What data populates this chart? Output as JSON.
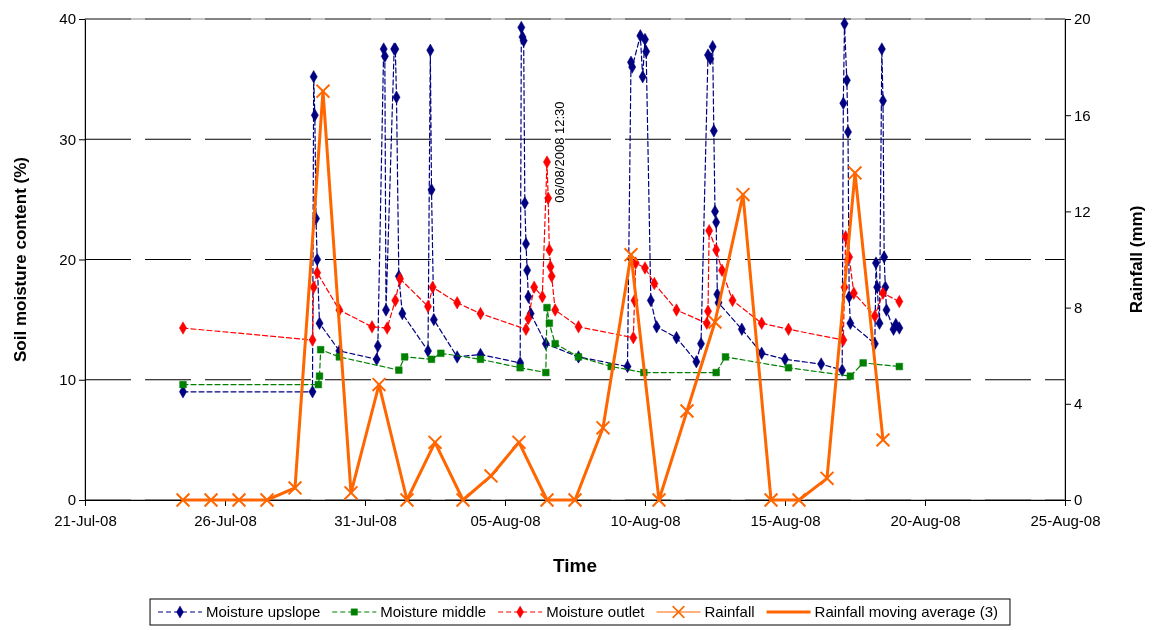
{
  "chart_data": {
    "type": "line",
    "xlabel": "Time",
    "ylabel": "Soil moisture content (%)",
    "y2label": "Rainfall (mm)",
    "xlim": [
      "2008-07-21",
      "2008-08-25"
    ],
    "xticks": [
      {
        "value": "2008-07-21",
        "label": "21-Jul-08"
      },
      {
        "value": "2008-07-26",
        "label": "26-Jul-08"
      },
      {
        "value": "2008-07-31",
        "label": "31-Jul-08"
      },
      {
        "value": "2008-08-05",
        "label": "05-Aug-08"
      },
      {
        "value": "2008-08-10",
        "label": "10-Aug-08"
      },
      {
        "value": "2008-08-15",
        "label": "15-Aug-08"
      },
      {
        "value": "2008-08-20",
        "label": "20-Aug-08"
      },
      {
        "value": "2008-08-25",
        "label": "25-Aug-08"
      }
    ],
    "ylim": [
      0,
      40
    ],
    "yticks": [
      0,
      10,
      20,
      30,
      40
    ],
    "y2lim": [
      0,
      20
    ],
    "y2ticks": [
      0,
      4,
      8,
      12,
      16,
      20
    ],
    "grid": "y",
    "legend": "bottom",
    "annotations": [
      {
        "text": "06/08/2008 12:30",
        "x": "2008-08-06T12:30",
        "y": 28.1
      }
    ],
    "series": [
      {
        "name": "Moisture upslope",
        "color": "#000080",
        "marker": "diamond",
        "line_style": "dashed",
        "x": [
          "2008-07-24T12:00",
          "2008-07-29T03:00",
          "2008-07-29T04:00",
          "2008-07-29T05:00",
          "2008-07-29T06:00",
          "2008-07-29T07:00",
          "2008-07-29T09:00",
          "2008-07-30T02:00",
          "2008-07-31T10:00",
          "2008-07-31T11:00",
          "2008-07-31T16:00",
          "2008-07-31T17:00",
          "2008-07-31T18:00",
          "2008-08-01T01:00",
          "2008-08-01T02:00",
          "2008-08-01T03:00",
          "2008-08-01T05:00",
          "2008-08-01T08:00",
          "2008-08-02T06:00",
          "2008-08-02T08:00",
          "2008-08-02T09:00",
          "2008-08-02T11:00",
          "2008-08-03T07:00",
          "2008-08-04T03:00",
          "2008-08-05T13:00",
          "2008-08-05T14:00",
          "2008-08-05T15:00",
          "2008-08-05T16:00",
          "2008-08-05T17:00",
          "2008-08-05T18:00",
          "2008-08-05T19:00",
          "2008-08-05T20:00",
          "2008-08-05T22:00",
          "2008-08-06T11:00",
          "2008-08-07T15:00",
          "2008-08-09T09:00",
          "2008-08-09T12:00",
          "2008-08-09T13:00",
          "2008-08-09T20:00",
          "2008-08-09T22:00",
          "2008-08-10T00:00",
          "2008-08-10T01:00",
          "2008-08-10T05:00",
          "2008-08-10T10:00",
          "2008-08-11T03:00",
          "2008-08-11T20:00",
          "2008-08-12T00:00",
          "2008-08-12T06:00",
          "2008-08-12T08:00",
          "2008-08-12T10:00",
          "2008-08-12T11:00",
          "2008-08-12T12:00",
          "2008-08-12T13:00",
          "2008-08-12T14:00",
          "2008-08-12T15:00",
          "2008-08-13T11:00",
          "2008-08-14T04:00",
          "2008-08-15T00:00",
          "2008-08-16T07:00",
          "2008-08-17T01:00",
          "2008-08-17T02:00",
          "2008-08-17T03:00",
          "2008-08-17T05:00",
          "2008-08-17T06:00",
          "2008-08-17T07:00",
          "2008-08-17T08:00",
          "2008-08-18T05:00",
          "2008-08-18T06:00",
          "2008-08-18T07:00",
          "2008-08-18T09:00",
          "2008-08-18T11:00",
          "2008-08-18T12:00",
          "2008-08-18T13:00",
          "2008-08-18T14:00",
          "2008-08-18T15:00",
          "2008-08-18T21:00",
          "2008-08-18T23:00",
          "2008-08-19T02:00"
        ],
        "values": [
          9.0,
          9.0,
          35.2,
          32.0,
          23.4,
          20.0,
          14.7,
          12.4,
          11.7,
          12.8,
          37.5,
          36.9,
          15.8,
          37.5,
          37.5,
          33.5,
          18.6,
          15.5,
          12.4,
          37.4,
          25.8,
          15.0,
          11.9,
          12.1,
          11.4,
          39.3,
          38.5,
          38.2,
          24.7,
          21.3,
          19.1,
          16.9,
          15.5,
          13.0,
          11.9,
          11.1,
          36.4,
          36.0,
          38.6,
          35.2,
          38.3,
          37.3,
          16.6,
          14.4,
          13.5,
          11.5,
          13.0,
          37.0,
          36.7,
          37.7,
          30.7,
          24.0,
          23.1,
          17.1,
          16.4,
          14.2,
          12.2,
          11.7,
          11.3,
          10.8,
          33.0,
          39.6,
          34.9,
          30.6,
          16.9,
          14.7,
          13.0,
          19.7,
          17.7,
          14.7,
          37.5,
          33.2,
          20.2,
          17.7,
          15.8,
          14.2,
          14.6,
          14.3
        ]
      },
      {
        "name": "Moisture middle",
        "color": "#008000",
        "marker": "square",
        "line_style": "dashed",
        "x": [
          "2008-07-24T12:00",
          "2008-07-29T08:00",
          "2008-07-29T09:00",
          "2008-07-29T10:00",
          "2008-07-30T02:00",
          "2008-08-01T05:00",
          "2008-08-01T10:00",
          "2008-08-02T09:00",
          "2008-08-02T17:00",
          "2008-08-04T03:00",
          "2008-08-05T13:00",
          "2008-08-06T11:00",
          "2008-08-06T12:00",
          "2008-08-06T14:00",
          "2008-08-06T19:00",
          "2008-08-07T15:00",
          "2008-08-08T19:00",
          "2008-08-09T23:00",
          "2008-08-12T13:00",
          "2008-08-12T21:00",
          "2008-08-15T03:00",
          "2008-08-17T08:00",
          "2008-08-17T19:00",
          "2008-08-19T02:00"
        ],
        "values": [
          9.6,
          9.6,
          10.3,
          12.5,
          11.9,
          10.8,
          11.9,
          11.7,
          12.2,
          11.7,
          11.0,
          10.6,
          16.0,
          14.7,
          13.0,
          11.9,
          11.1,
          10.6,
          10.6,
          11.9,
          11.0,
          10.3,
          11.4,
          11.1
        ]
      },
      {
        "name": "Moisture outlet",
        "color": "#ff0000",
        "marker": "diamond",
        "line_style": "dashed",
        "x": [
          "2008-07-24T12:00",
          "2008-07-29T03:00",
          "2008-07-29T04:00",
          "2008-07-29T07:00",
          "2008-07-30T02:00",
          "2008-07-31T06:00",
          "2008-07-31T19:00",
          "2008-08-01T02:00",
          "2008-08-01T06:00",
          "2008-08-02T06:00",
          "2008-08-02T10:00",
          "2008-08-03T07:00",
          "2008-08-04T03:00",
          "2008-08-05T18:00",
          "2008-08-05T20:00",
          "2008-08-06T01:00",
          "2008-08-06T08:00",
          "2008-08-06T12:00",
          "2008-08-06T13:00",
          "2008-08-06T14:00",
          "2008-08-06T15:00",
          "2008-08-06T16:00",
          "2008-08-06T19:00",
          "2008-08-07T15:00",
          "2008-08-09T14:00",
          "2008-08-09T15:00",
          "2008-08-09T16:00",
          "2008-08-10T00:00",
          "2008-08-10T08:00",
          "2008-08-11T03:00",
          "2008-08-12T05:00",
          "2008-08-12T06:00",
          "2008-08-12T07:00",
          "2008-08-12T13:00",
          "2008-08-12T18:00",
          "2008-08-13T03:00",
          "2008-08-14T04:00",
          "2008-08-15T03:00",
          "2008-08-17T02:00",
          "2008-08-17T03:00",
          "2008-08-17T04:00",
          "2008-08-17T07:00",
          "2008-08-17T11:00",
          "2008-08-18T05:00",
          "2008-08-18T12:00",
          "2008-08-19T02:00"
        ],
        "values": [
          14.3,
          13.3,
          17.7,
          18.9,
          15.8,
          14.4,
          14.3,
          16.6,
          18.4,
          16.1,
          17.7,
          16.4,
          15.5,
          14.2,
          15.1,
          17.7,
          16.9,
          28.1,
          25.1,
          20.8,
          19.4,
          18.6,
          15.8,
          14.4,
          13.5,
          16.6,
          19.7,
          19.3,
          18.0,
          15.8,
          14.7,
          15.7,
          22.4,
          20.8,
          19.1,
          16.6,
          14.7,
          14.2,
          13.3,
          17.7,
          21.9,
          20.2,
          17.2,
          15.3,
          17.2,
          16.5
        ]
      },
      {
        "name": "Rainfall",
        "color": "#ff6600",
        "marker": "cross",
        "line_style": "solid",
        "axis": "y2",
        "x": [
          "2008-07-24T12:00",
          "2008-07-25T12:00",
          "2008-07-26T12:00",
          "2008-07-27T12:00",
          "2008-07-28T12:00",
          "2008-07-29T12:00",
          "2008-07-30T12:00",
          "2008-07-31T12:00",
          "2008-08-01T12:00",
          "2008-08-02T12:00",
          "2008-08-03T12:00",
          "2008-08-04T12:00",
          "2008-08-05T12:00",
          "2008-08-06T12:00",
          "2008-08-07T12:00",
          "2008-08-08T12:00",
          "2008-08-09T12:00",
          "2008-08-10T12:00",
          "2008-08-11T12:00",
          "2008-08-12T12:00",
          "2008-08-13T12:00",
          "2008-08-14T12:00",
          "2008-08-15T12:00",
          "2008-08-16T12:00",
          "2008-08-17T12:00",
          "2008-08-18T12:00"
        ],
        "values": [
          0,
          0,
          0,
          0,
          0.5,
          17.0,
          0.3,
          4.8,
          0,
          2.4,
          0,
          1.0,
          2.4,
          0,
          0,
          3.0,
          10.2,
          0,
          3.7,
          7.4,
          12.7,
          0,
          0,
          0.9,
          13.6,
          2.5
        ]
      },
      {
        "name": "Rainfall moving average (3)",
        "color": "#ff6600",
        "marker": "none",
        "line_style": "solid",
        "axis": "y2"
      }
    ]
  }
}
